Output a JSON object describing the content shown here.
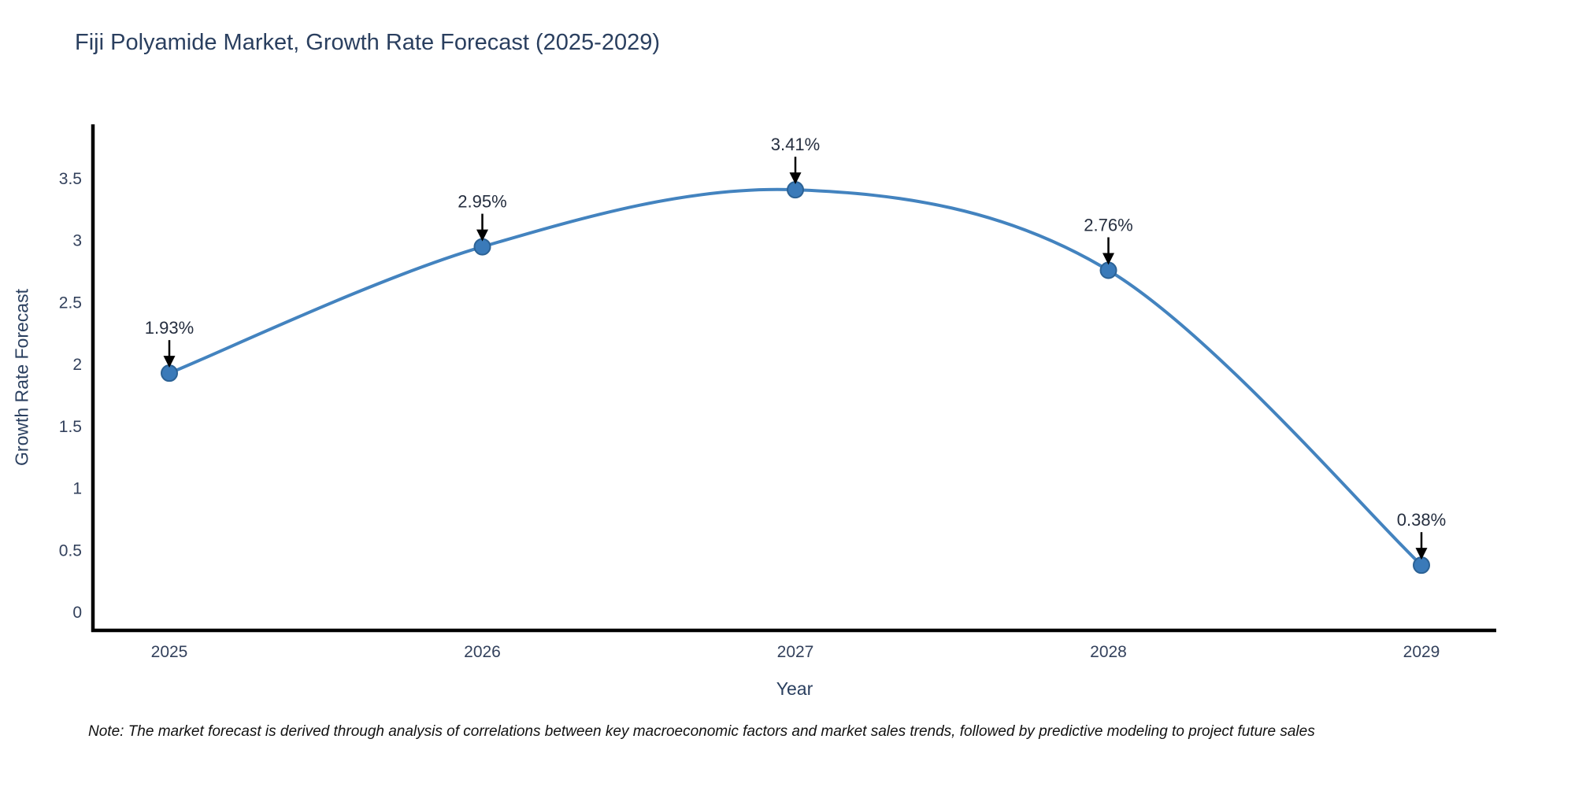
{
  "chart_data": {
    "type": "line",
    "title": "Fiji Polyamide Market, Growth Rate Forecast (2025-2029)",
    "xlabel": "Year",
    "ylabel": "Growth Rate Forecast",
    "categories": [
      "2025",
      "2026",
      "2027",
      "2028",
      "2029"
    ],
    "series": [
      {
        "name": "Growth Rate Forecast",
        "values": [
          1.93,
          2.95,
          3.41,
          2.76,
          0.38
        ],
        "point_labels": [
          "1.93%",
          "2.95%",
          "3.41%",
          "2.76%",
          "0.38%"
        ]
      }
    ],
    "yticks": [
      0,
      0.5,
      1,
      1.5,
      2,
      2.5,
      3,
      3.5
    ],
    "ylim": [
      -0.15,
      3.85
    ],
    "grid": false,
    "legend_position": "none",
    "line_shape": "spline",
    "colors": {
      "line": "#4383bf",
      "marker_fill": "#3a7ab9",
      "marker_edge": "#2c6295",
      "axis": "#000000",
      "arrow": "#000000",
      "title_text": "#2a3f5f",
      "tick_text": "#33415c",
      "annotation_text": "#252e3f"
    }
  },
  "note": "Note: The market forecast is derived through analysis of correlations between key macroeconomic factors and market sales trends, followed by predictive modeling to project future sales"
}
